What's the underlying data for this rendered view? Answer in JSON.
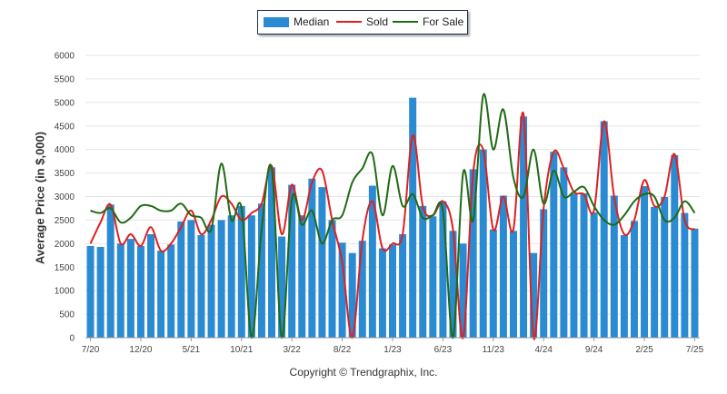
{
  "chart_data": {
    "type": "bar",
    "ylabel": "Average Price (in $,000)",
    "ylim": [
      0,
      6000
    ],
    "yticks": [
      "0",
      "500",
      "1000",
      "1500",
      "2000",
      "2500",
      "3000",
      "3500",
      "4000",
      "4500",
      "5000",
      "5500",
      "6000"
    ],
    "xtick_labels": [
      "7/20",
      "12/20",
      "5/21",
      "10/21",
      "3/22",
      "8/22",
      "1/23",
      "6/23",
      "11/23",
      "4/24",
      "9/24",
      "2/25",
      "7/25"
    ],
    "xtick_every": 5,
    "legend_position": "top-center",
    "grid": true,
    "series": [
      {
        "name": "Median",
        "type": "bar",
        "color": "#2a8ad2",
        "values": [
          1950,
          1930,
          2830,
          2000,
          2100,
          1950,
          2200,
          1850,
          1980,
          2470,
          2500,
          2180,
          2400,
          2500,
          2600,
          2800,
          2600,
          2850,
          3620,
          2150,
          3250,
          2600,
          3380,
          3200,
          2500,
          2020,
          1800,
          2060,
          3230,
          1900,
          1980,
          2200,
          5100,
          2800,
          2580,
          2900,
          2270,
          2000,
          3580,
          4000,
          2300,
          3020,
          2270,
          4700,
          1800,
          2730,
          3950,
          3620,
          3060,
          3070,
          2660,
          4600,
          3020,
          2180,
          2480,
          3220,
          2780,
          2990,
          3880,
          2650,
          2320
        ]
      },
      {
        "name": "Sold",
        "type": "line",
        "color": "#e02020",
        "values": [
          2000,
          2450,
          2830,
          2000,
          2200,
          1950,
          2350,
          1850,
          2000,
          2350,
          2700,
          2200,
          2500,
          3000,
          2850,
          2500,
          2650,
          2850,
          3650,
          2200,
          3250,
          2500,
          3300,
          3550,
          2500,
          1600,
          0,
          2080,
          2900,
          1900,
          2000,
          2200,
          4300,
          2800,
          2600,
          2900,
          2300,
          0,
          3500,
          4000,
          2300,
          3000,
          2300,
          4750,
          0,
          2750,
          3950,
          3600,
          3100,
          3050,
          2700,
          4600,
          3000,
          2200,
          2500,
          3350,
          2800,
          3000,
          3900,
          2500,
          2300
        ]
      },
      {
        "name": "For Sale",
        "type": "line",
        "color": "#1f6b14",
        "values": [
          2700,
          2650,
          2750,
          2450,
          2550,
          2800,
          2800,
          2700,
          2700,
          2850,
          2600,
          2550,
          2300,
          3700,
          2500,
          2750,
          0,
          2300,
          3600,
          0,
          2950,
          2400,
          2700,
          2000,
          2500,
          2600,
          3300,
          3600,
          3900,
          2600,
          3650,
          2800,
          3050,
          2550,
          2600,
          2700,
          0,
          3500,
          2500,
          5150,
          4000,
          4850,
          3400,
          3000,
          4000,
          2850,
          3550,
          3000,
          3100,
          3200,
          2800,
          2500,
          2400,
          2600,
          2900,
          3050,
          3000,
          2500,
          2550,
          2900,
          2650
        ]
      }
    ]
  },
  "legend": {
    "median": "Median",
    "sold": "Sold",
    "for_sale": "For Sale"
  },
  "footer": {
    "copyright": "Copyright © Trendgraphix, Inc."
  },
  "colors": {
    "median": "#2a8ad2",
    "sold": "#e02020",
    "for_sale": "#1f6b14"
  }
}
